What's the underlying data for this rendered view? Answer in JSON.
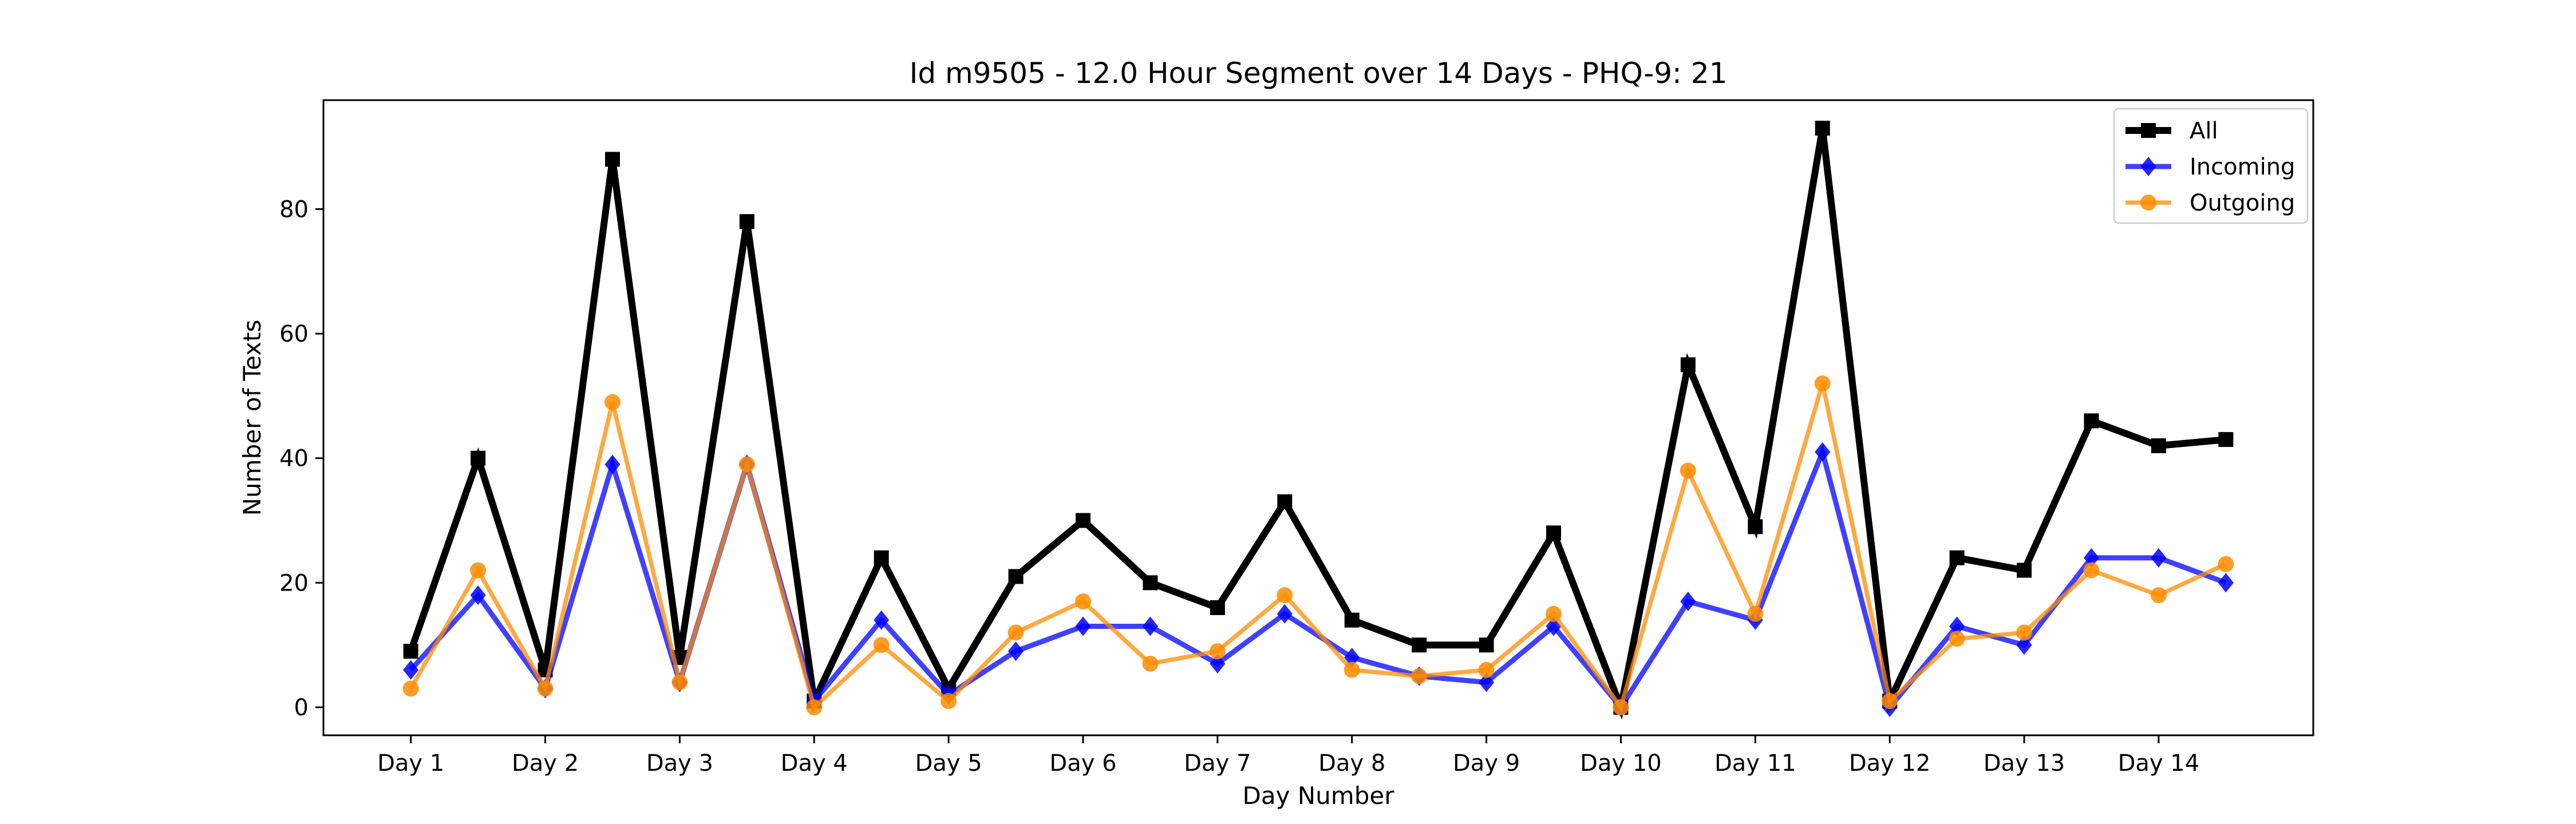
{
  "chart_data": {
    "type": "line",
    "title": "Id m9505 - 12.0 Hour Segment over 14 Days - PHQ-9: 21",
    "xlabel": "Day Number",
    "ylabel": "Number of Texts",
    "xlim": [
      0.35,
      15.15
    ],
    "ylim": [
      -4.5,
      97.5
    ],
    "xticks": [
      1,
      2,
      3,
      4,
      5,
      6,
      7,
      8,
      9,
      10,
      11,
      12,
      13,
      14
    ],
    "xtick_labels": [
      "Day 1",
      "Day 2",
      "Day 3",
      "Day 4",
      "Day 5",
      "Day 6",
      "Day 7",
      "Day 8",
      "Day 9",
      "Day 10",
      "Day 11",
      "Day 12",
      "Day 13",
      "Day 14"
    ],
    "yticks": [
      0,
      20,
      40,
      60,
      80
    ],
    "grid": false,
    "legend_position": "top-right",
    "x": [
      1,
      1.5,
      2,
      2.5,
      3,
      3.5,
      4,
      4.5,
      5,
      5.5,
      6,
      6.5,
      7,
      7.5,
      8,
      8.5,
      9,
      9.5,
      10,
      10.5,
      11,
      11.5,
      12,
      12.5,
      13,
      13.5,
      14,
      14.5
    ],
    "series": [
      {
        "name": "All",
        "color": "#000000",
        "marker": "square",
        "values": [
          9,
          40,
          6,
          88,
          8,
          78,
          1,
          24,
          3,
          21,
          30,
          20,
          16,
          33,
          14,
          10,
          10,
          28,
          0,
          55,
          29,
          93,
          1,
          24,
          22,
          46,
          42,
          43
        ]
      },
      {
        "name": "Incoming",
        "color": "#0000ff",
        "marker": "diamond",
        "values": [
          6,
          18,
          3,
          39,
          4,
          39,
          1,
          14,
          2,
          9,
          13,
          13,
          7,
          15,
          8,
          5,
          4,
          13,
          0,
          17,
          14,
          41,
          0,
          13,
          10,
          24,
          24,
          20
        ]
      },
      {
        "name": "Outgoing",
        "color": "#ff8c00",
        "marker": "circle",
        "values": [
          3,
          22,
          3,
          49,
          4,
          39,
          0,
          10,
          1,
          12,
          17,
          7,
          9,
          18,
          6,
          5,
          6,
          15,
          0,
          38,
          15,
          52,
          1,
          11,
          12,
          22,
          18,
          23
        ]
      }
    ]
  }
}
